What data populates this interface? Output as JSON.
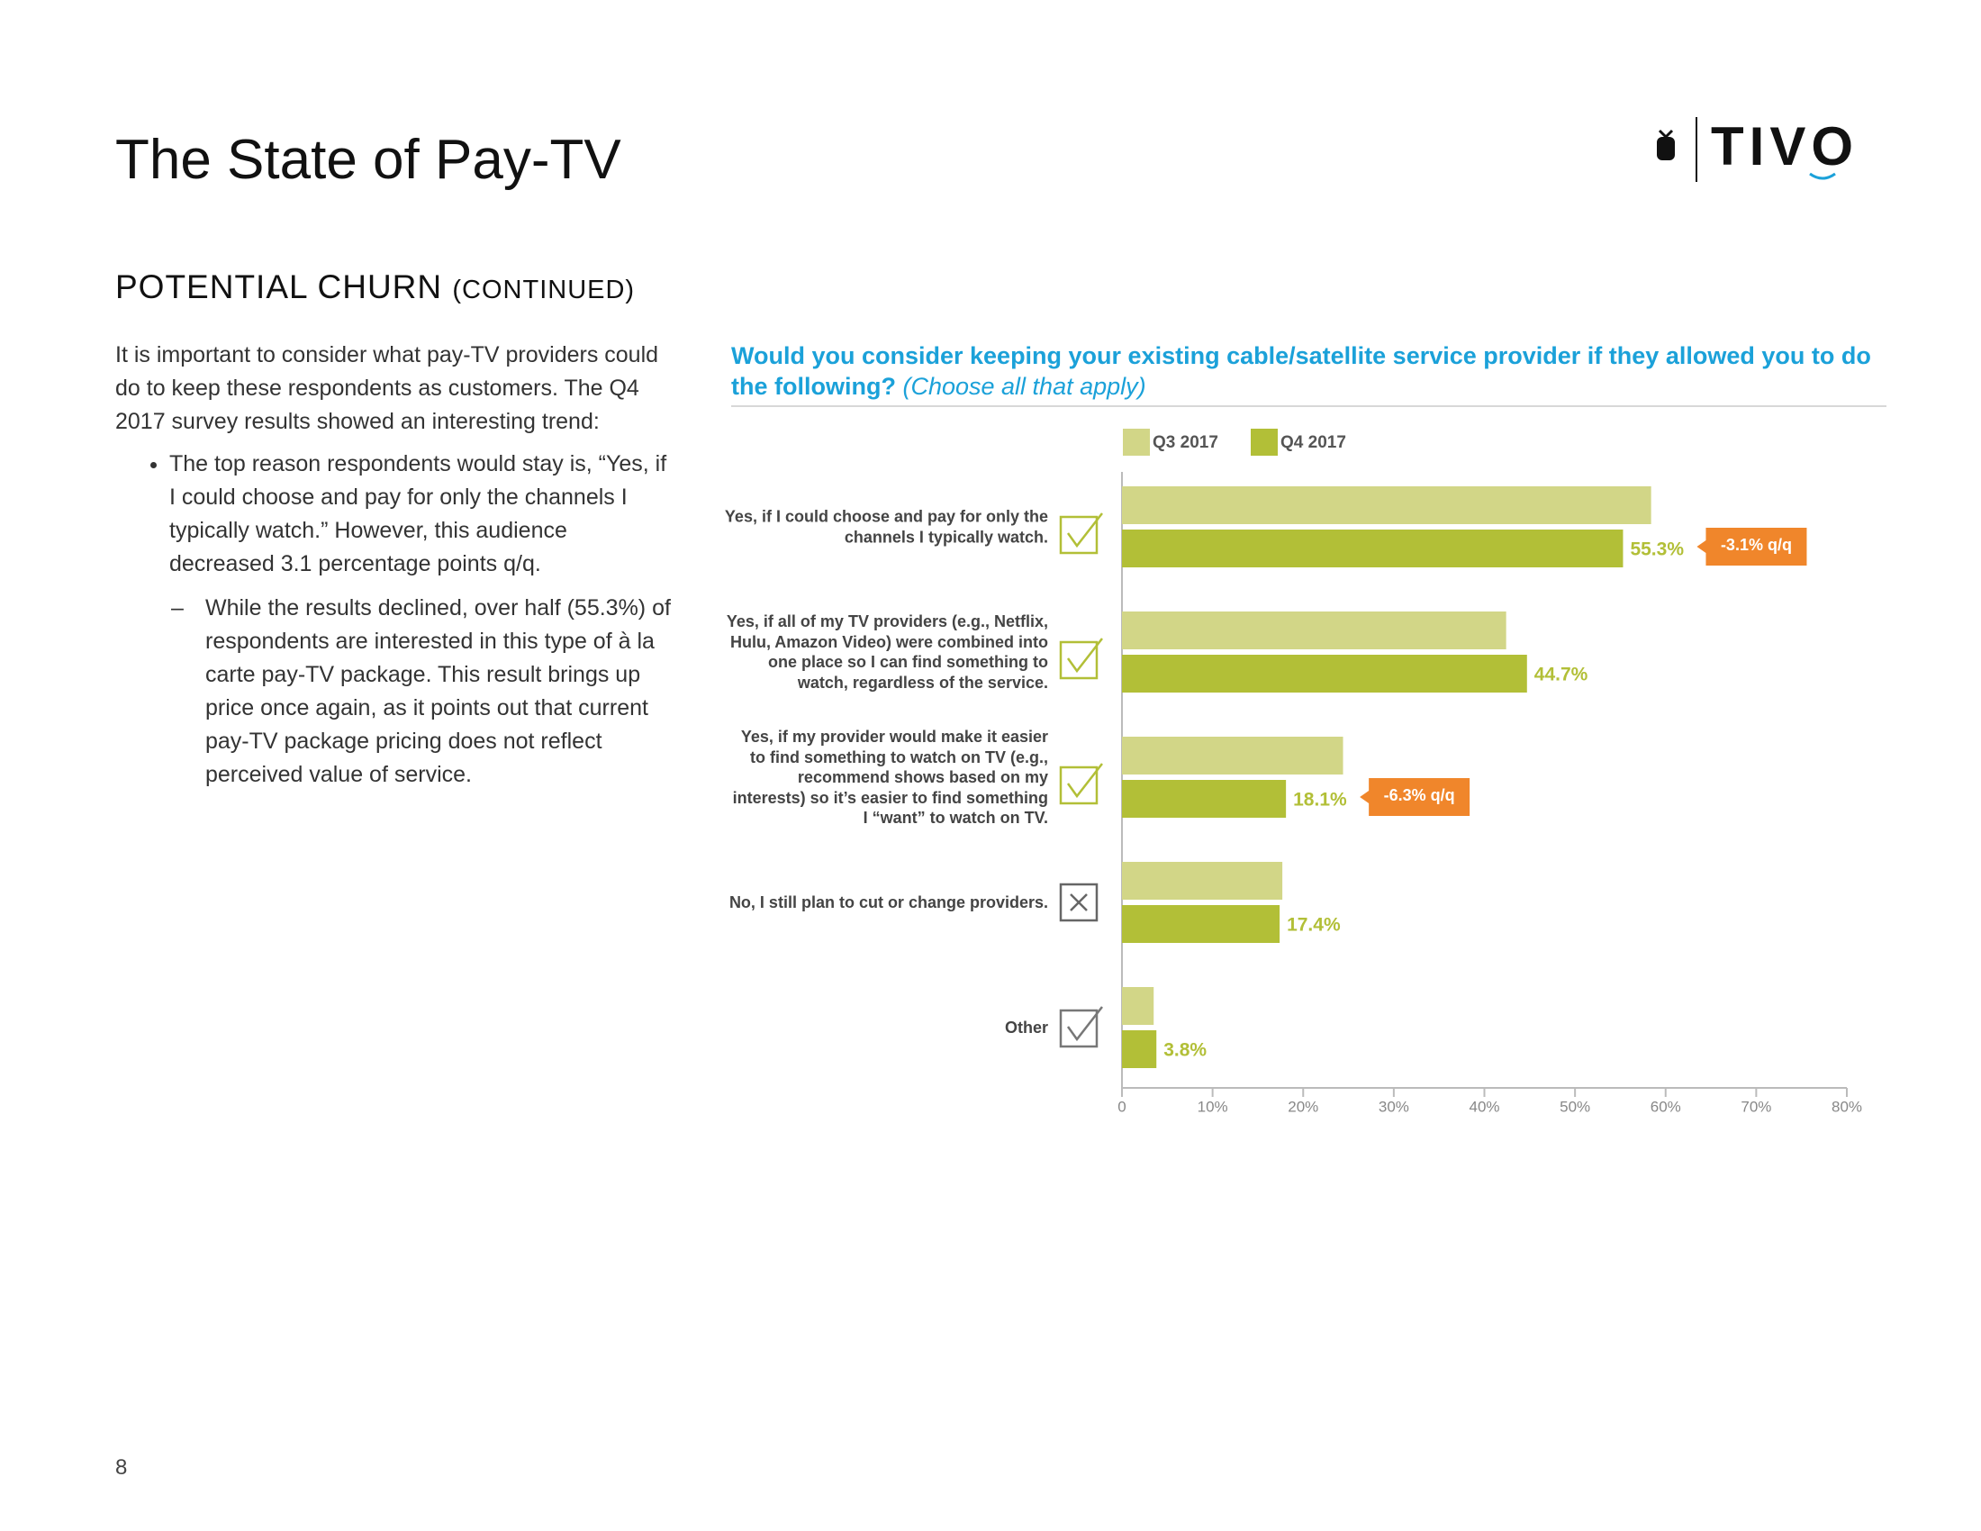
{
  "title": "The State of Pay-TV",
  "logo": "TIVO",
  "section": {
    "heading": "POTENTIAL CHURN",
    "heading_note": "(CONTINUED)"
  },
  "intro": "It is important to consider what pay-TV providers could do to keep these respondents as customers. The Q4 2017 survey results showed an interesting trend:",
  "bullets": [
    {
      "text": "The top reason respondents would stay is, “Yes, if I could choose and pay for only the channels I typically watch.” However, this audience decreased 3.1 percentage points q/q.",
      "sub": [
        "While the results declined, over half (55.3%) of respondents are interested in this type of à la carte pay-TV package. This result brings up price once again, as it points out that current pay-TV package pricing does not reflect perceived value of service."
      ]
    }
  ],
  "page_number": "8",
  "chart_data": {
    "type": "hbar",
    "title": "Would you consider keeping your existing cable/satellite service provider if they allowed you to do the following?",
    "subtitle": "(Choose all that apply)",
    "categories": [
      "Yes, if I could choose and pay for only the channels I typically watch.",
      "Yes, if all of my TV providers (e.g., Netflix, Hulu, Amazon Video) were combined into one place so I can find something to watch, regardless of the service.",
      "Yes, if my provider would make it easier to find something to watch on TV (e.g., recommend shows based on my interests) so it’s easier to find something I “want” to watch on TV.",
      "No, I still plan to cut or change providers.",
      "Other"
    ],
    "series": [
      {
        "name": "Q3 2017",
        "color": "#d2d687",
        "values": [
          58.4,
          42.4,
          24.4,
          17.7,
          3.5
        ]
      },
      {
        "name": "Q4 2017",
        "color": "#b2bf37",
        "values": [
          55.3,
          44.7,
          18.1,
          17.4,
          3.8
        ],
        "value_labels": [
          "55.3%",
          "44.7%",
          "18.1%",
          "17.4%",
          "3.8%"
        ]
      }
    ],
    "annotations": [
      "-3.1% q/q",
      null,
      "-6.3% q/q",
      null,
      null
    ],
    "annotation_color": "#f0862b",
    "xlim": [
      0,
      80
    ],
    "xticks": [
      0,
      {
        "value": 10,
        "label": "10%"
      },
      {
        "value": 20,
        "label": "20%"
      },
      {
        "value": 30,
        "label": "30%"
      },
      {
        "value": 40,
        "label": "40%"
      },
      {
        "value": 50,
        "label": "50%"
      },
      {
        "value": 60,
        "label": "60%"
      },
      {
        "value": 70,
        "label": "70%"
      },
      {
        "value": 80,
        "label": "80%"
      }
    ],
    "legend": "top"
  }
}
